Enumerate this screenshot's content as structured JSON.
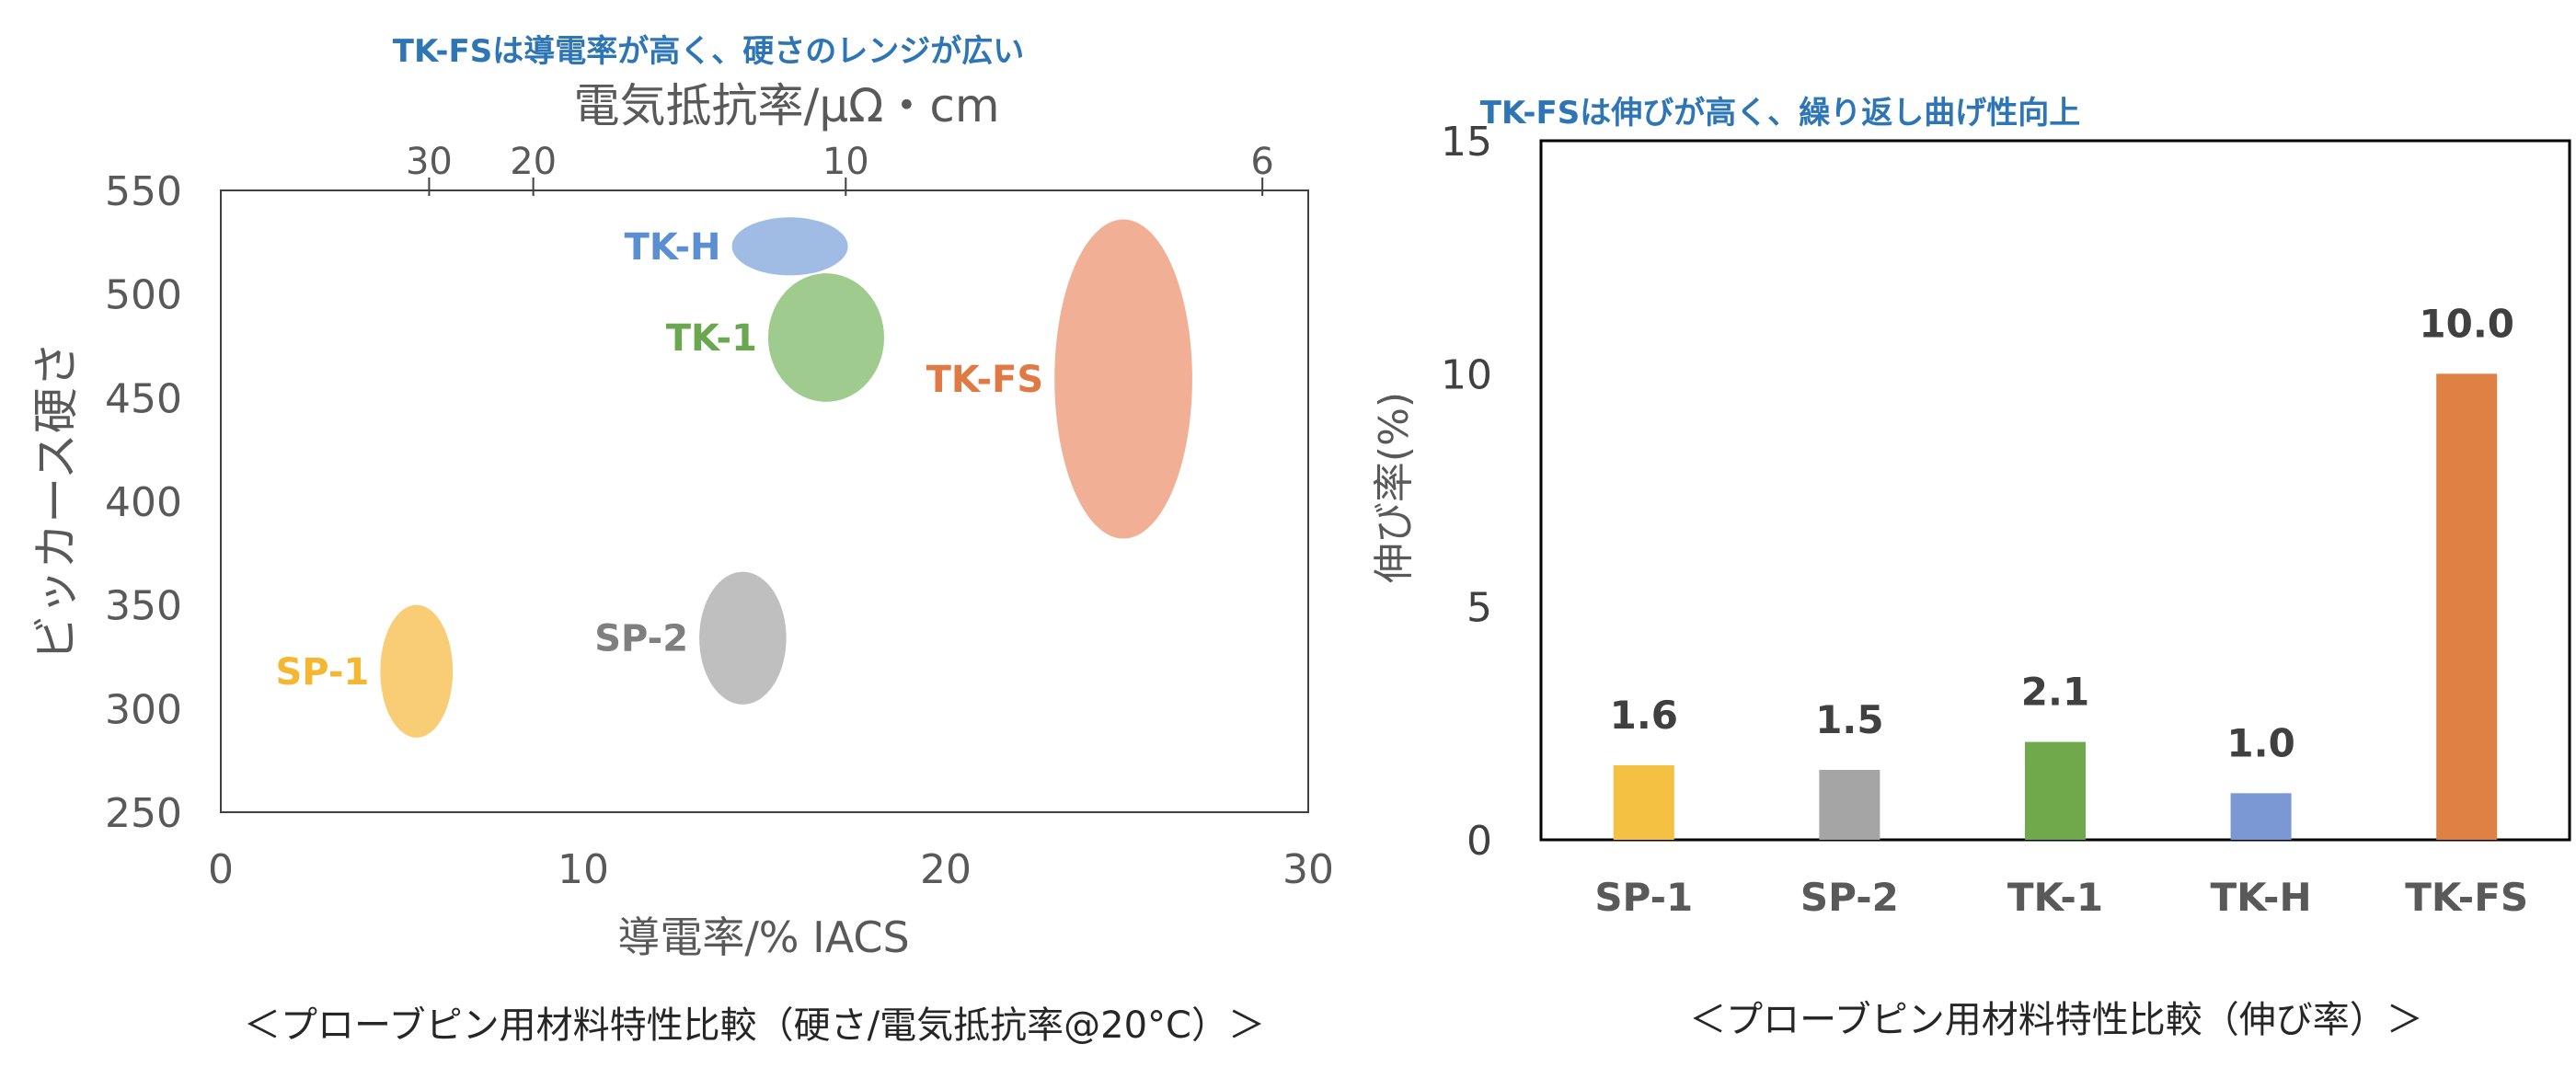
{
  "chart_data": [
    {
      "type": "scatter",
      "title": "TK-FSは導電率が高く、硬さのレンジが広い",
      "secondary_xlabel": "電気抵抗率/μΩ・cm",
      "secondary_ticks": [
        30,
        20,
        10,
        6
      ],
      "secondary_tick_labels": [
        "30",
        "20",
        "10",
        "6"
      ],
      "xlabel": "導電率/% IACS",
      "ylabel": "ビッカース硬さ",
      "xlim": [
        0,
        30
      ],
      "ylim": [
        250,
        550
      ],
      "xticks": [
        0,
        10,
        20,
        30
      ],
      "yticks": [
        250,
        300,
        350,
        400,
        450,
        500,
        550
      ],
      "series": [
        {
          "name": "SP-1",
          "x": 5.4,
          "y": 318,
          "x_range": [
            4.4,
            6.4
          ],
          "y_range": [
            286,
            350
          ],
          "color": "#f8c45e"
        },
        {
          "name": "SP-2",
          "x": 14.4,
          "y": 334,
          "x_range": [
            13.2,
            15.6
          ],
          "y_range": [
            302,
            366
          ],
          "color": "#b4b4b4"
        },
        {
          "name": "TK-H",
          "x": 15.7,
          "y": 523,
          "x_range": [
            14.1,
            17.3
          ],
          "y_range": [
            509,
            537
          ],
          "color": "#8fb0df"
        },
        {
          "name": "TK-1",
          "x": 16.7,
          "y": 479,
          "x_range": [
            15.1,
            18.3
          ],
          "y_range": [
            448,
            510
          ],
          "color": "#8fc27a"
        },
        {
          "name": "TK-FS",
          "x": 24.9,
          "y": 459,
          "x_range": [
            23.0,
            26.8
          ],
          "y_range": [
            382,
            536
          ],
          "color": "#eea283"
        }
      ],
      "caption": "＜プローブピン用材料特性比較（硬さ/電気抵抗率@20°C）＞"
    },
    {
      "type": "bar",
      "title": "TK-FSは伸びが高く、繰り返し曲げ性向上",
      "ylabel": "伸び率(%)",
      "categories": [
        "SP-1",
        "SP-2",
        "TK-1",
        "TK-H",
        "TK-FS"
      ],
      "values": [
        1.6,
        1.5,
        2.1,
        1.0,
        10.0
      ],
      "value_labels": [
        "1.6",
        "1.5",
        "2.1",
        "1.0",
        "10.0"
      ],
      "colors": [
        "#f5c142",
        "#a5a5a5",
        "#70a94c",
        "#7b98d4",
        "#df8044"
      ],
      "ylim": [
        0,
        15
      ],
      "yticks": [
        0,
        5,
        10,
        15
      ],
      "caption": "＜プローブピン用材料特性比較（伸び率）＞"
    }
  ],
  "colors": {
    "title": "#2e75b6",
    "axis_text": "#595959",
    "label_sp1": "#f5b731",
    "label_sp2": "#7f7f7f",
    "label_tkh": "#5b8fd1",
    "label_tk1": "#6aa84f",
    "label_tkfs": "#e07a45"
  }
}
